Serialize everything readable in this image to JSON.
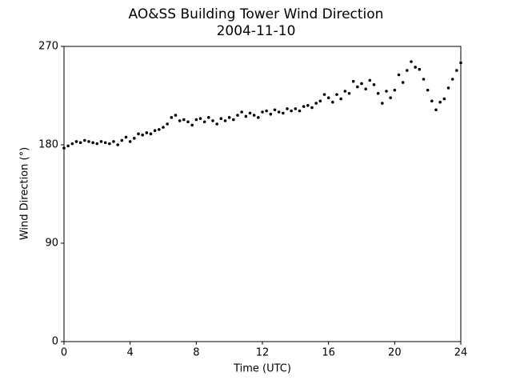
{
  "chart_data": {
    "type": "scatter",
    "title": "AO&SS Building Tower Wind Direction",
    "subtitle": "2004-11-10",
    "x_label": "Time (UTC)",
    "y_label": "Wind Direction (°)",
    "color": "#000000",
    "xlim": [
      0,
      24
    ],
    "xticks": [
      0,
      4,
      8,
      12,
      16,
      20,
      24
    ],
    "ylim": [
      0,
      270
    ],
    "yticks": [
      0,
      90,
      180,
      270
    ],
    "x": [
      0,
      0.25,
      0.5,
      0.75,
      1,
      1.25,
      1.5,
      1.75,
      2,
      2.25,
      2.5,
      2.75,
      3,
      3.25,
      3.5,
      3.75,
      4,
      4.25,
      4.5,
      4.75,
      5,
      5.25,
      5.5,
      5.75,
      6,
      6.25,
      6.5,
      6.75,
      7,
      7.25,
      7.5,
      7.75,
      8,
      8.25,
      8.5,
      8.75,
      9,
      9.25,
      9.5,
      9.75,
      10,
      10.25,
      10.5,
      10.75,
      11,
      11.25,
      11.5,
      11.75,
      12,
      12.25,
      12.5,
      12.75,
      13,
      13.25,
      13.5,
      13.75,
      14,
      14.25,
      14.5,
      14.75,
      15,
      15.25,
      15.5,
      15.75,
      16,
      16.25,
      16.5,
      16.75,
      17,
      17.25,
      17.5,
      17.75,
      18,
      18.25,
      18.5,
      18.75,
      19,
      19.25,
      19.5,
      19.75,
      20,
      20.25,
      20.5,
      20.75,
      21,
      21.25,
      21.5,
      21.75,
      22,
      22.25,
      22.5,
      22.75,
      23,
      23.25,
      23.5,
      23.75,
      24
    ],
    "values": [
      177,
      179,
      181,
      183,
      182,
      184,
      183,
      182,
      181,
      183,
      182,
      181,
      183,
      180,
      184,
      187,
      183,
      186,
      190,
      189,
      191,
      190,
      193,
      194,
      196,
      199,
      205,
      207,
      202,
      203,
      201,
      198,
      203,
      204,
      201,
      205,
      202,
      199,
      204,
      202,
      205,
      203,
      207,
      210,
      206,
      209,
      207,
      205,
      210,
      211,
      208,
      212,
      210,
      209,
      213,
      211,
      213,
      211,
      215,
      216,
      214,
      218,
      220,
      226,
      223,
      219,
      226,
      222,
      229,
      227,
      238,
      233,
      236,
      231,
      239,
      235,
      227,
      218,
      229,
      223,
      230,
      244,
      237,
      248,
      256,
      251,
      249,
      240,
      230,
      220,
      212,
      219,
      222,
      232,
      240,
      248,
      255
    ]
  }
}
